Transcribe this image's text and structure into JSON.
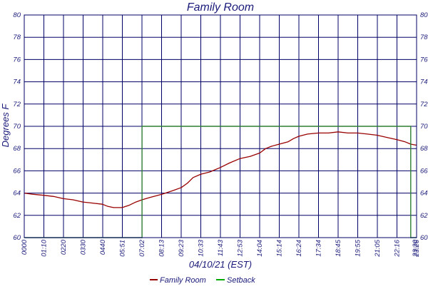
{
  "chart_data": {
    "type": "line",
    "title": "Family Room",
    "xlabel": "04/10/21 (EST)",
    "ylabel": "Degrees F",
    "ylim": [
      60,
      80
    ],
    "y_ticks": [
      "60",
      "62",
      "64",
      "66",
      "68",
      "70",
      "72",
      "74",
      "76",
      "78",
      "80"
    ],
    "x_ticks": [
      "0000",
      "01:10",
      "0220",
      "0330",
      "0440",
      "05:51",
      "07:02",
      "08:13",
      "09:23",
      "10:33",
      "11:43",
      "12:53",
      "14:04",
      "15:14",
      "16:24",
      "17:34",
      "18:45",
      "19:55",
      "21:05",
      "22:16",
      "23:20",
      "23:26"
    ],
    "grid": true,
    "legend_position": "bottom",
    "colors": {
      "family_room": "#990000",
      "setback": "#00aa00",
      "setback_line": "#2e7d32",
      "grid": "#000066",
      "text": "#1a1a7a"
    },
    "series": [
      {
        "name": "Family Room",
        "x": [
          "00:00",
          "00:30",
          "01:10",
          "01:45",
          "02:20",
          "02:55",
          "03:30",
          "04:05",
          "04:40",
          "05:00",
          "05:20",
          "05:51",
          "06:15",
          "06:40",
          "07:02",
          "07:30",
          "08:13",
          "08:50",
          "09:23",
          "09:45",
          "10:05",
          "10:33",
          "11:05",
          "11:43",
          "12:15",
          "12:53",
          "13:30",
          "14:04",
          "14:25",
          "14:45",
          "15:14",
          "15:45",
          "16:05",
          "16:24",
          "16:55",
          "17:34",
          "18:10",
          "18:45",
          "19:20",
          "19:55",
          "20:30",
          "21:05",
          "21:40",
          "22:16",
          "22:45",
          "23:05",
          "23:26"
        ],
        "y": [
          64.0,
          63.9,
          63.8,
          63.7,
          63.5,
          63.4,
          63.2,
          63.1,
          63.0,
          62.8,
          62.7,
          62.7,
          62.9,
          63.2,
          63.4,
          63.6,
          63.9,
          64.2,
          64.5,
          64.9,
          65.4,
          65.7,
          65.9,
          66.3,
          66.7,
          67.1,
          67.3,
          67.6,
          68.0,
          68.2,
          68.4,
          68.6,
          68.9,
          69.1,
          69.3,
          69.4,
          69.4,
          69.5,
          69.4,
          69.4,
          69.3,
          69.2,
          69.0,
          68.8,
          68.6,
          68.4,
          68.3
        ]
      },
      {
        "name": "Setback",
        "x": [
          "00:00",
          "07:02",
          "07:02",
          "23:05",
          "23:05",
          "23:26"
        ],
        "y": [
          60,
          60,
          70,
          70,
          60,
          60
        ]
      }
    ]
  }
}
